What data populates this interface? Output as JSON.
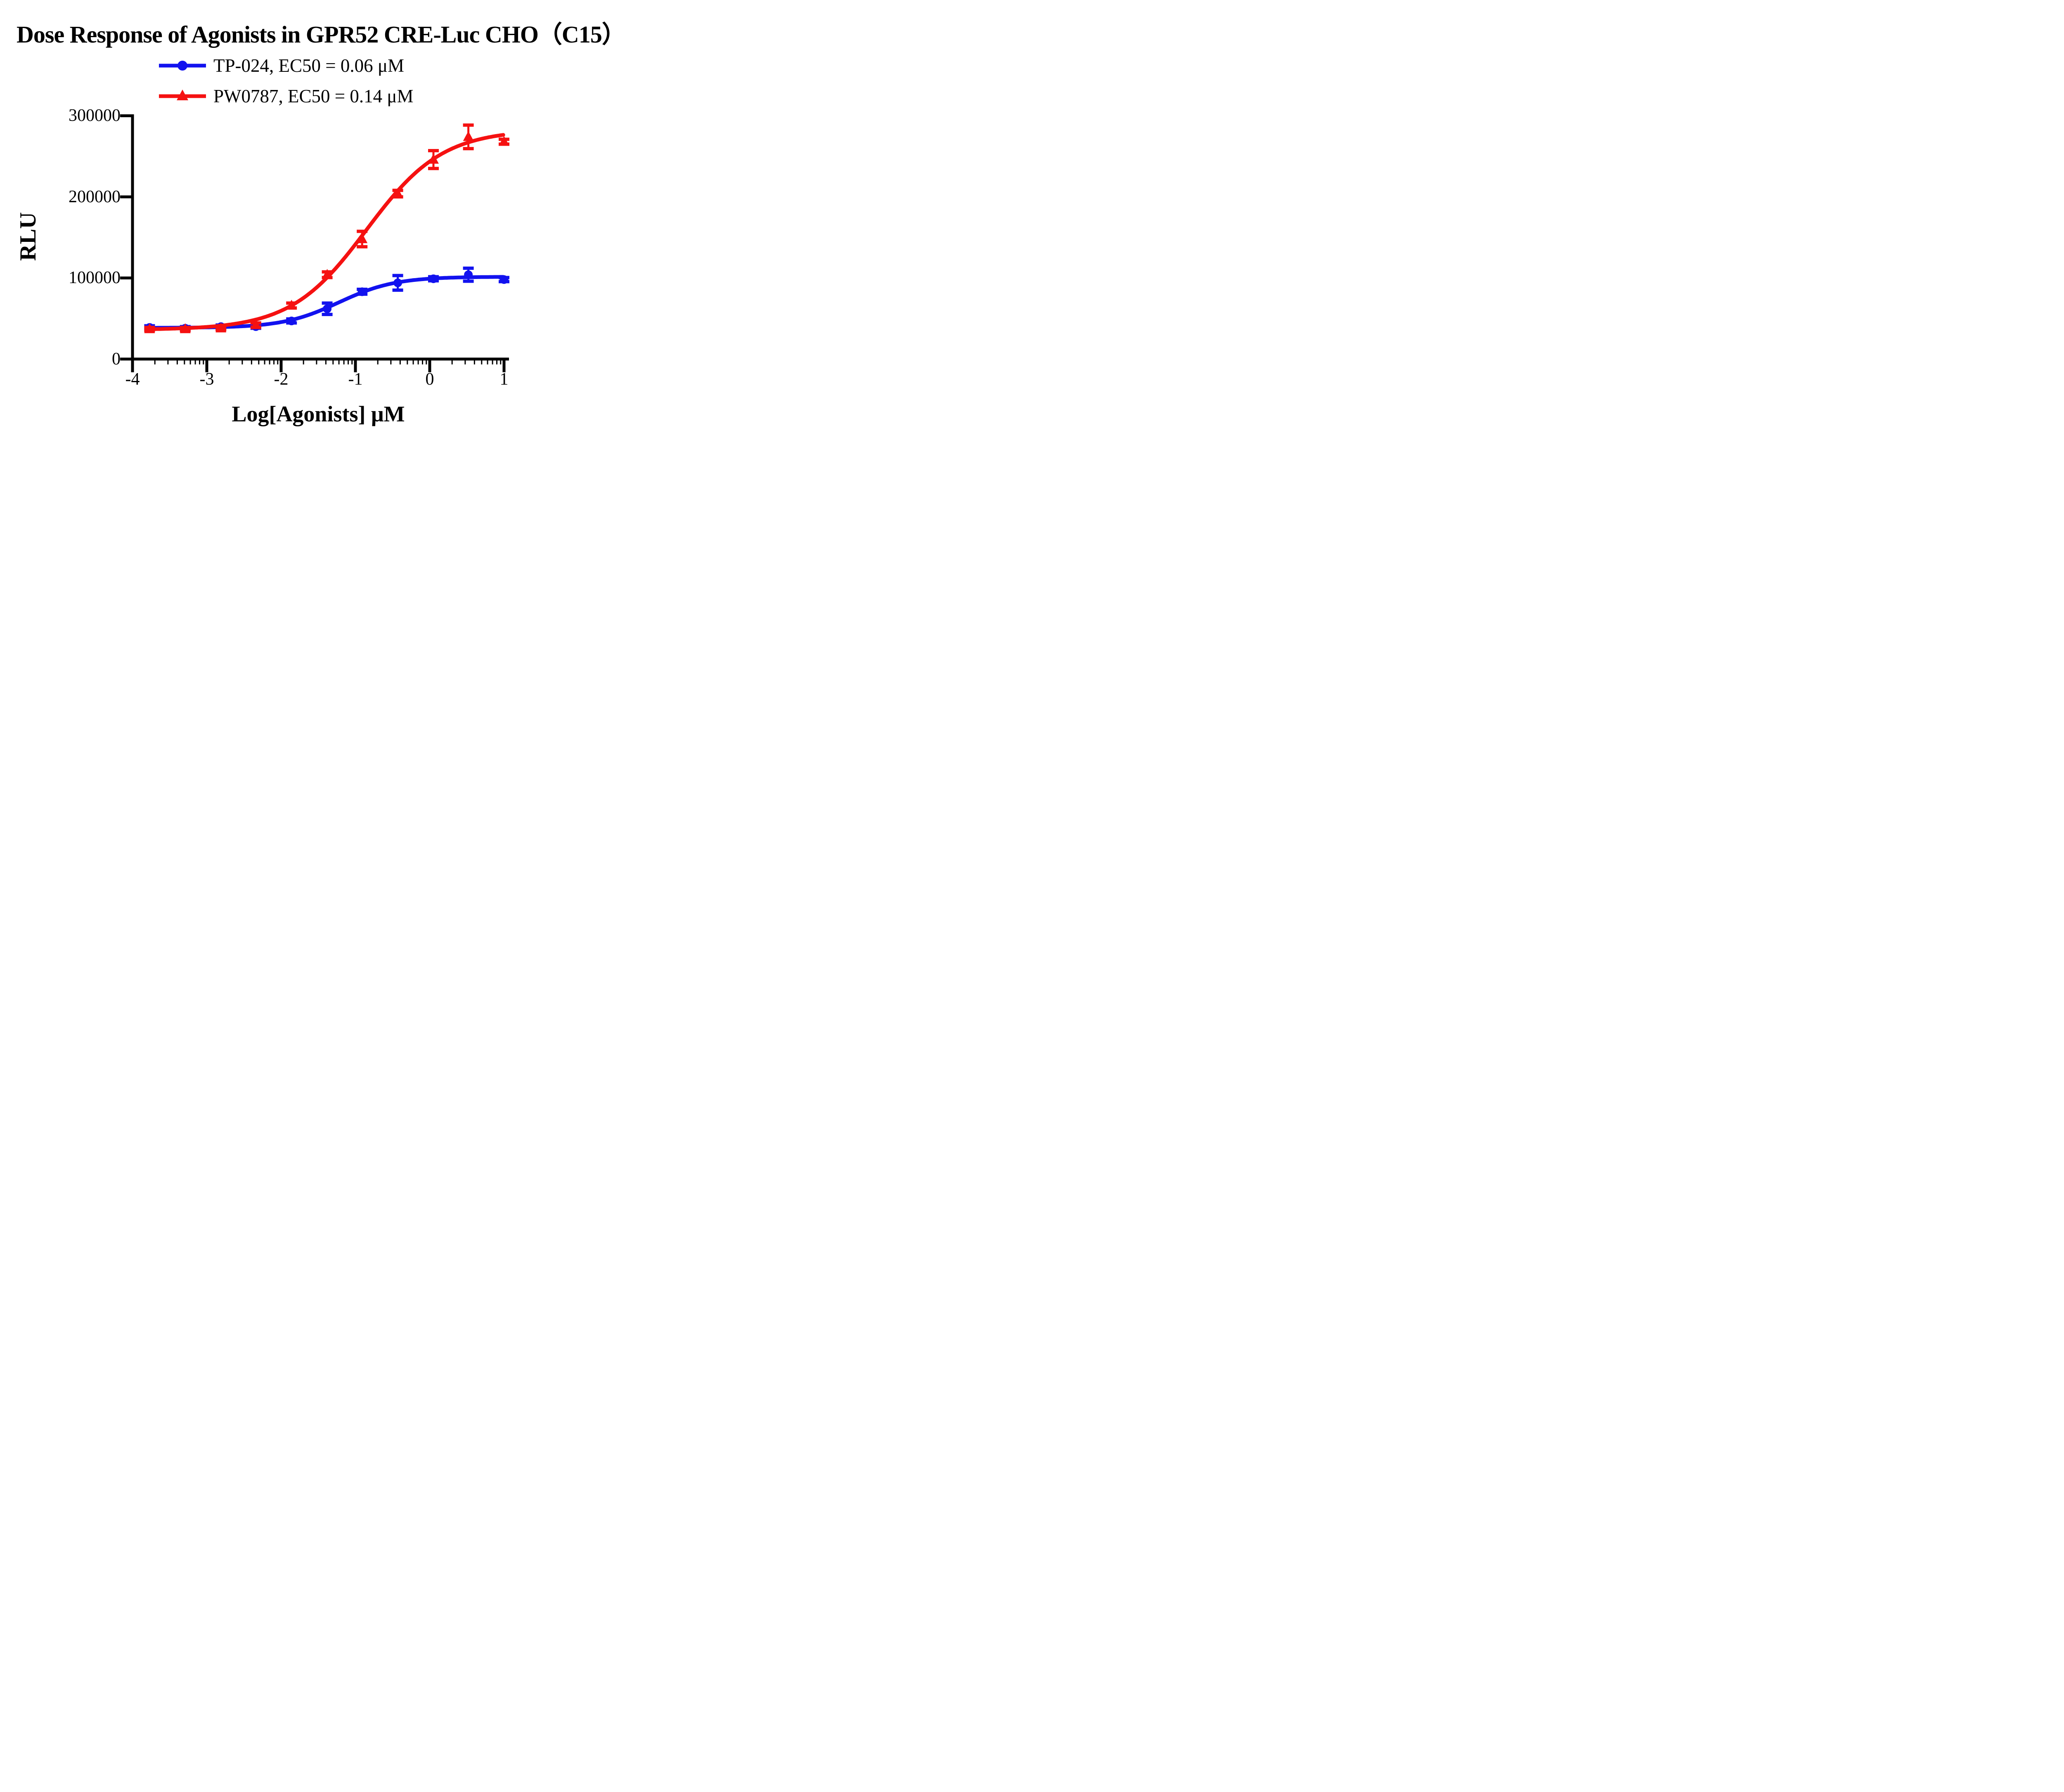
{
  "title": "Dose Response of Agonists in GPR52 CRE-Luc CHO（C15）",
  "legend": {
    "entries": [
      {
        "label": "TP-024, EC50 = 0.06 μM",
        "marker": "circle",
        "color": "#1212EF"
      },
      {
        "label": "PW0787, EC50 = 0.14 μM",
        "marker": "triangle",
        "color": "#F51111"
      }
    ]
  },
  "chart_data": {
    "type": "line",
    "title": "Dose Response of Agonists in GPR52 CRE-Luc CHO（C15）",
    "xlabel": "Log[Agonists] μM",
    "ylabel": "RLU",
    "xlim": [
      -4,
      1
    ],
    "ylim": [
      0,
      300000
    ],
    "xticks": [
      -4,
      -3,
      -2,
      -1,
      0,
      1
    ],
    "yticks": [
      0,
      100000,
      200000,
      300000
    ],
    "xtick_labels": [
      "-4",
      "-3",
      "-2",
      "-1",
      "0",
      "1"
    ],
    "ytick_labels": [
      "0",
      "100000",
      "200000",
      "300000"
    ],
    "minor_ticks": "log-spaced (2-9 per decade) on x axis",
    "grid": false,
    "legend_position": "top-center",
    "x": [
      -3.77,
      -3.29,
      -2.81,
      -2.34,
      -1.86,
      -1.38,
      -0.91,
      -0.43,
      0.05,
      0.52,
      1.0
    ],
    "series": [
      {
        "name": "TP-024, EC50 = 0.06 μM",
        "compound": "TP-024",
        "ec50_uM": 0.06,
        "color": "#1212EF",
        "marker": "circle",
        "values": [
          39000,
          38000,
          40000,
          40000,
          47000,
          62000,
          83000,
          94000,
          99000,
          104000,
          98000
        ],
        "errors": [
          2000,
          2000,
          2000,
          2000,
          2500,
          7000,
          3000,
          9000,
          2500,
          8000,
          2500
        ],
        "fit": {
          "model": "4PL",
          "bottom": 38500,
          "top": 101500,
          "logEC50": -1.22,
          "hill": 1.15
        }
      },
      {
        "name": "PW0787, EC50 = 0.14 μM",
        "compound": "PW0787",
        "ec50_uM": 0.14,
        "color": "#F51111",
        "marker": "triangle",
        "values": [
          37000,
          37000,
          38000,
          42000,
          66000,
          104000,
          148000,
          204000,
          246000,
          274000,
          268000
        ],
        "errors": [
          2000,
          2000,
          2000,
          2500,
          3000,
          3500,
          9500,
          4000,
          11000,
          14500,
          3000
        ],
        "fit": {
          "model": "4PL",
          "bottom": 36000,
          "top": 283000,
          "logEC50": -0.85,
          "hill": 0.85
        }
      }
    ]
  }
}
